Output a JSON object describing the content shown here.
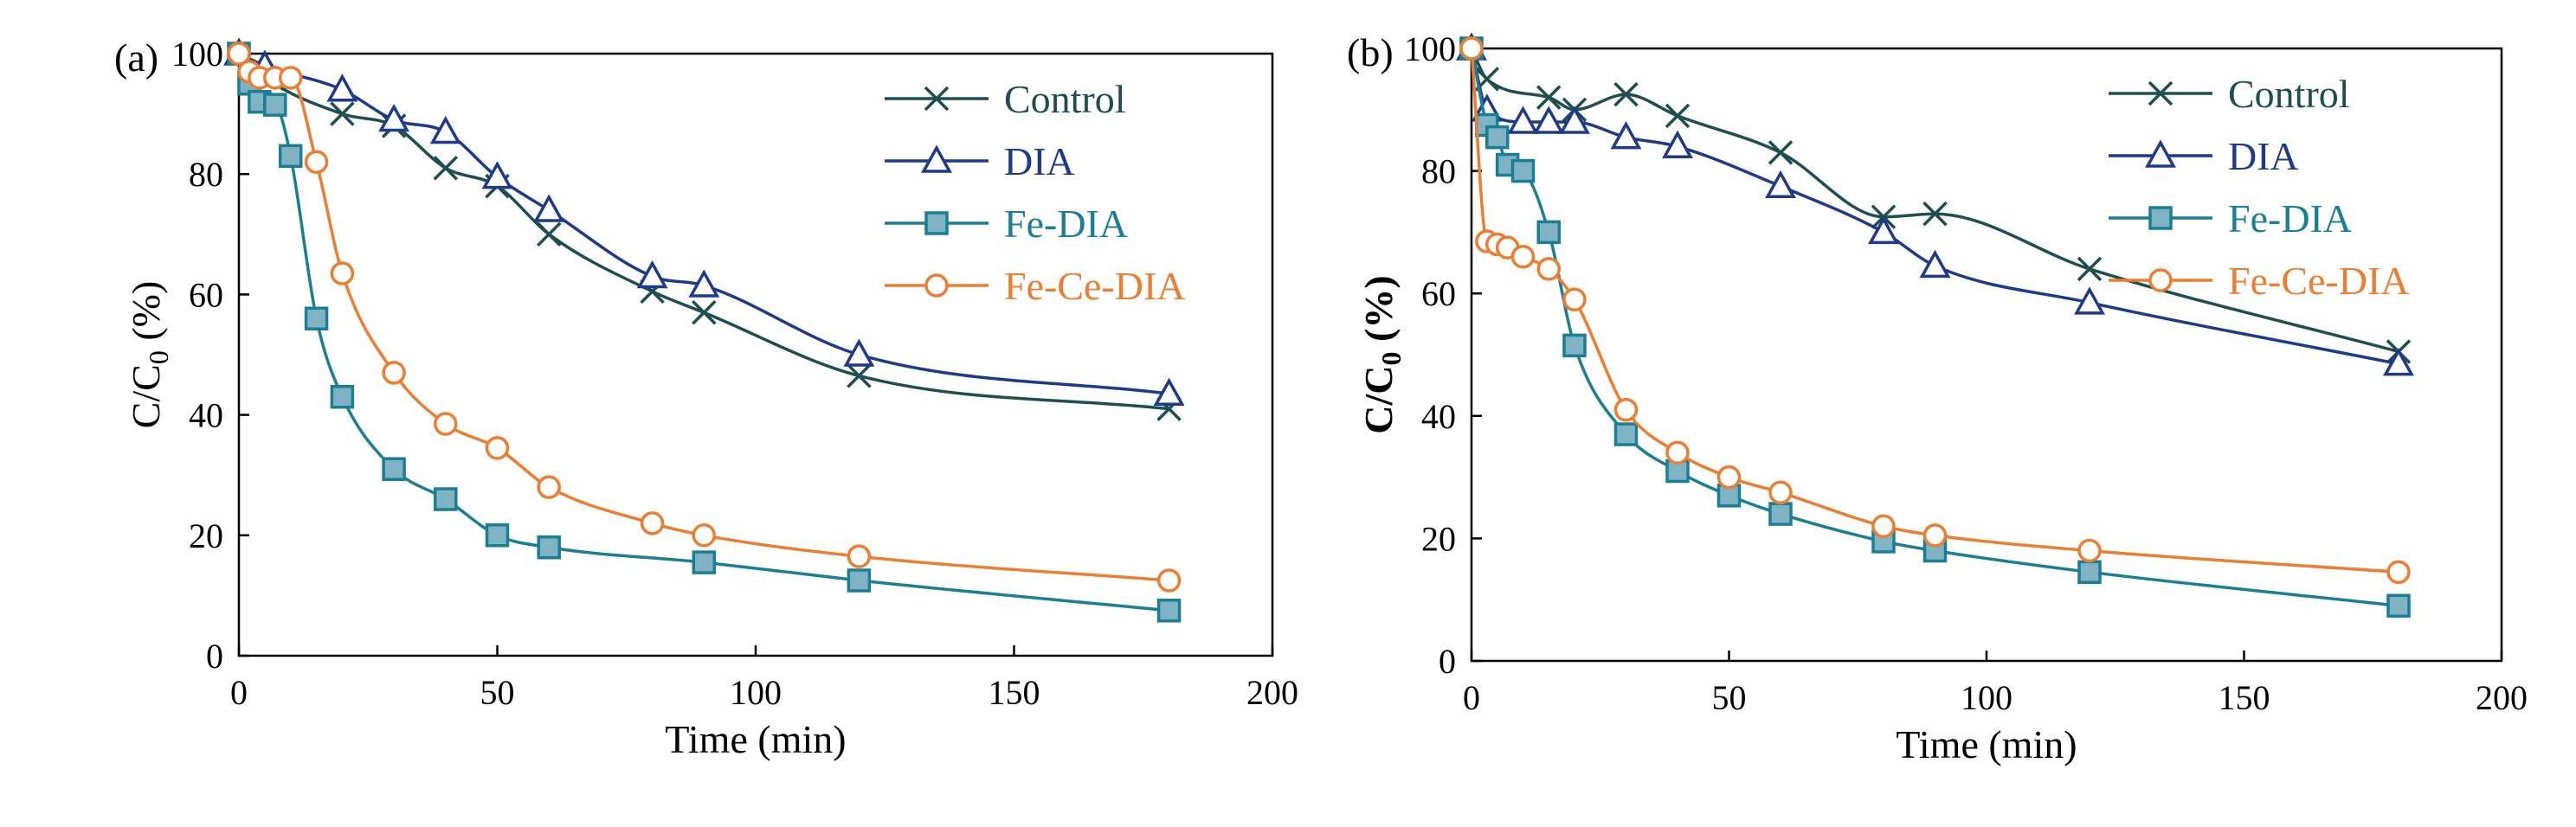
{
  "colors": {
    "control": "#1f4e4e",
    "dia": "#1f3a8a",
    "fe_dia": "#1a7f94",
    "fe_dia_fill": "#7fb3c4",
    "fe_ce_dia": "#ed7d31",
    "axis": "#000000"
  },
  "chart_data": [
    {
      "type": "line",
      "panel_label": "(a)",
      "xlabel": "Time (min)",
      "ylabel_main": "C/C",
      "ylabel_sub": "0",
      "ylabel_suffix": " (%)",
      "ylabel_bold": false,
      "xlim": [
        0,
        200
      ],
      "ylim": [
        0,
        100
      ],
      "xticks": [
        0,
        50,
        100,
        150,
        200
      ],
      "yticks": [
        0,
        20,
        40,
        60,
        80,
        100
      ],
      "legend_position": "top-right",
      "series": [
        {
          "key": "control",
          "name": "Control",
          "marker": "cross",
          "x": [
            0,
            5,
            20,
            30,
            40,
            50,
            60,
            80,
            90,
            120,
            180
          ],
          "y": [
            100,
            96,
            90,
            88,
            81,
            78,
            70,
            60.5,
            57,
            46.5,
            41
          ]
        },
        {
          "key": "dia",
          "name": "DIA",
          "marker": "triangle",
          "x": [
            0,
            5,
            20,
            30,
            40,
            50,
            60,
            80,
            90,
            120,
            180
          ],
          "y": [
            100,
            98,
            94,
            89,
            87,
            79.5,
            74,
            63,
            61.5,
            50,
            43.5
          ]
        },
        {
          "key": "fe_dia",
          "name": "Fe-DIA",
          "marker": "square",
          "x": [
            0,
            2,
            4,
            7,
            10,
            15,
            20,
            30,
            40,
            50,
            60,
            90,
            120,
            180
          ],
          "y": [
            100,
            95,
            92,
            91.5,
            83,
            56,
            43,
            31,
            26,
            20,
            18,
            15.5,
            12.5,
            7.5
          ]
        },
        {
          "key": "fe_ce_dia",
          "name": "Fe-Ce-DIA",
          "marker": "circle",
          "x": [
            0,
            2,
            4,
            7,
            10,
            15,
            20,
            30,
            40,
            50,
            60,
            80,
            90,
            120,
            180
          ],
          "y": [
            100,
            97,
            96,
            96,
            96,
            82,
            63.5,
            47,
            38.5,
            34.5,
            28,
            22,
            20,
            16.5,
            12.5
          ]
        }
      ]
    },
    {
      "type": "line",
      "panel_label": "(b)",
      "xlabel": "Time (min)",
      "ylabel_main": "C/C",
      "ylabel_sub": "0",
      "ylabel_suffix": " (%)",
      "ylabel_bold": true,
      "xlim": [
        0,
        200
      ],
      "ylim": [
        0,
        100
      ],
      "xticks": [
        0,
        50,
        100,
        150,
        200
      ],
      "yticks": [
        0,
        20,
        40,
        60,
        80,
        100
      ],
      "legend_position": "top-right",
      "series": [
        {
          "key": "control",
          "name": "Control",
          "marker": "cross",
          "x": [
            0,
            3,
            15,
            20,
            30,
            40,
            60,
            80,
            90,
            120,
            180
          ],
          "y": [
            100,
            95,
            92,
            90,
            92.5,
            89,
            83,
            72.5,
            73,
            64,
            50.5
          ]
        },
        {
          "key": "dia",
          "name": "DIA",
          "marker": "triangle",
          "x": [
            0,
            3,
            10,
            15,
            20,
            30,
            40,
            60,
            80,
            90,
            120,
            180
          ],
          "y": [
            100,
            90,
            88,
            88,
            88,
            85.5,
            84,
            77.5,
            70,
            64.5,
            58.5,
            48.5
          ]
        },
        {
          "key": "fe_dia",
          "name": "Fe-DIA",
          "marker": "square",
          "x": [
            0,
            3,
            5,
            7,
            10,
            15,
            20,
            30,
            40,
            50,
            60,
            80,
            90,
            120,
            180
          ],
          "y": [
            100,
            87.5,
            85.5,
            81,
            80,
            70,
            51.5,
            37,
            31,
            27,
            24,
            19.5,
            18,
            14.5,
            9
          ]
        },
        {
          "key": "fe_ce_dia",
          "name": "Fe-Ce-DIA",
          "marker": "circle",
          "x": [
            0,
            3,
            5,
            7,
            10,
            15,
            20,
            30,
            40,
            50,
            60,
            80,
            90,
            120,
            180
          ],
          "y": [
            100,
            68.5,
            68,
            67.5,
            66,
            64,
            59,
            41,
            34,
            30,
            27.5,
            22,
            20.5,
            18,
            14.5
          ]
        }
      ]
    }
  ]
}
